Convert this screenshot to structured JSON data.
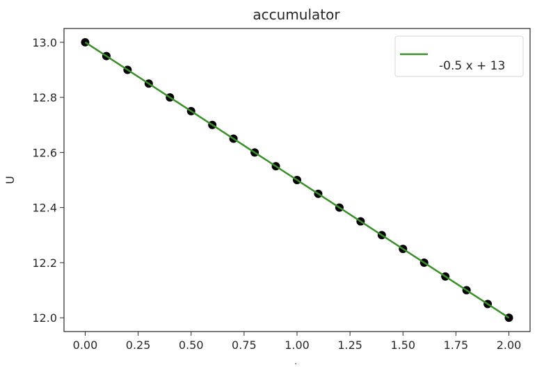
{
  "chart_data": {
    "type": "scatter",
    "title": "accumulator",
    "xlabel": "t",
    "ylabel": "U",
    "xlim": [
      -0.1,
      2.1
    ],
    "ylim": [
      11.95,
      13.05
    ],
    "xticks": [
      0.0,
      0.25,
      0.5,
      0.75,
      1.0,
      1.25,
      1.5,
      1.75,
      2.0
    ],
    "xtick_labels": [
      "0.00",
      "0.25",
      "0.50",
      "0.75",
      "1.00",
      "1.25",
      "1.50",
      "1.75",
      "2.00"
    ],
    "yticks": [
      12.0,
      12.2,
      12.4,
      12.6,
      12.8,
      13.0
    ],
    "ytick_labels": [
      "12.0",
      "12.2",
      "12.4",
      "12.6",
      "12.8",
      "13.0"
    ],
    "grid": false,
    "legend_position": "top-right",
    "series": [
      {
        "kind": "scatter",
        "color": "#000000",
        "x": [
          0.0,
          0.1,
          0.2,
          0.3,
          0.4,
          0.5,
          0.6,
          0.7,
          0.8,
          0.9,
          1.0,
          1.1,
          1.2,
          1.3,
          1.4,
          1.5,
          1.6,
          1.7,
          1.8,
          1.9,
          2.0
        ],
        "y": [
          13.0,
          12.95,
          12.9,
          12.85,
          12.8,
          12.75,
          12.7,
          12.65,
          12.6,
          12.55,
          12.5,
          12.45,
          12.4,
          12.35,
          12.3,
          12.25,
          12.2,
          12.15,
          12.1,
          12.05,
          12.0
        ]
      },
      {
        "kind": "line",
        "name": "-0.5 x + 13",
        "color": "#3a8f2a",
        "x": [
          0.0,
          2.0
        ],
        "y": [
          13.0,
          12.0
        ]
      }
    ]
  }
}
